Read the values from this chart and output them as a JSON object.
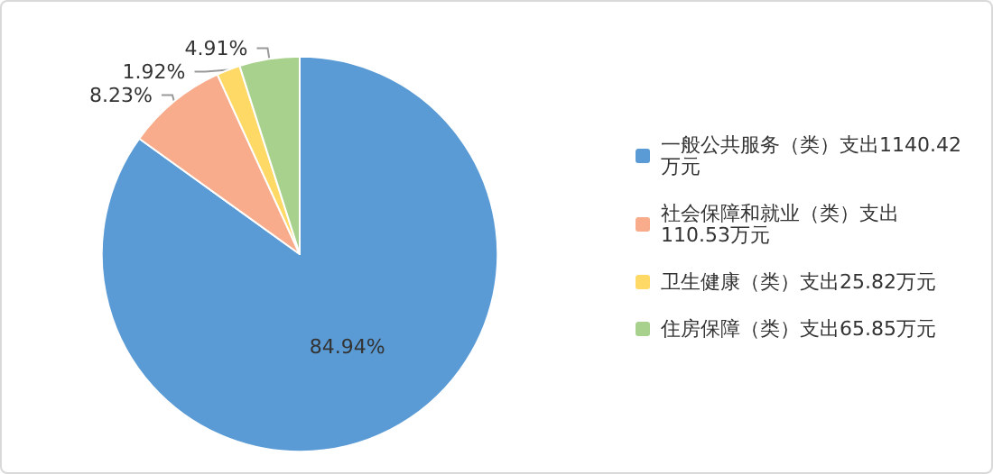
{
  "chart_data": {
    "type": "pie",
    "categories": [
      "一般公共服务（类）支出1140.42万元",
      "社会保障和就业（类）支出110.53万元",
      "卫生健康（类）支出25.82万元",
      "住房保障（类）支出65.85万元"
    ],
    "values": [
      84.94,
      8.23,
      1.92,
      4.91
    ],
    "value_labels": [
      "84.94%",
      "8.23%",
      "1.92%",
      "4.91%"
    ],
    "colors": [
      "#5b9bd5",
      "#f8ac8c",
      "#ffd966",
      "#a9d18e"
    ],
    "legend": "right"
  }
}
